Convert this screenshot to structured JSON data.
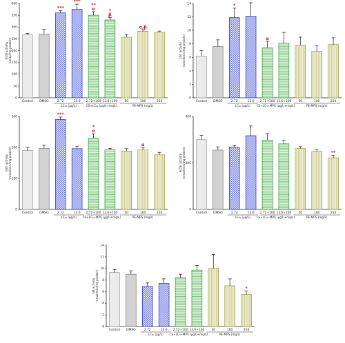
{
  "chart_data": [
    {
      "id": "p1",
      "type": "bar",
      "ylabel": "SOD activity\n(units/mg protein)",
      "ylim": [
        0,
        400
      ],
      "yticks": [
        "0",
        "50",
        "100",
        "150",
        "200",
        "250",
        "300",
        "350",
        "400"
      ],
      "categories": [
        "Control",
        "DMSO",
        "2.72",
        "13.6",
        "2.72+100",
        "13.6+100",
        "50",
        "100",
        "250"
      ],
      "values": [
        268,
        270,
        360,
        375,
        350,
        330,
        257,
        282,
        278
      ],
      "errors": [
        5,
        20,
        10,
        22,
        15,
        10,
        12,
        6,
        5
      ],
      "annotations": [
        "",
        "",
        "***",
        "***",
        "**\nα",
        "*\nβ",
        "",
        "α,β",
        ""
      ],
      "groups": [
        {
          "label": "LC₅₀ (µg/L)",
          "span": [
            2,
            3
          ]
        },
        {
          "label": "CS+LC₅₀ (µg/L+mg/L)",
          "span": [
            4,
            5
          ]
        },
        {
          "label": "PE-MPS (mg/L)",
          "span": [
            6,
            8
          ]
        }
      ]
    },
    {
      "id": "p2",
      "type": "bar",
      "ylabel": "CAT activity\n(umol/min/mg protein)",
      "ylim": [
        0,
        14
      ],
      "yticks": [
        "0",
        "2",
        "4",
        "6",
        "8",
        "10",
        "12",
        "14"
      ],
      "categories": [
        "Control",
        "DMSO",
        "2.72",
        "13.6",
        "2.72+100",
        "13.6+100",
        "50",
        "100",
        "250"
      ],
      "values": [
        6.2,
        7.6,
        11.9,
        12.1,
        7.4,
        8.1,
        7.8,
        6.9,
        7.9
      ],
      "errors": [
        0.8,
        1.0,
        1.4,
        2.0,
        1.0,
        1.6,
        1.2,
        0.8,
        1.0
      ],
      "annotations": [
        "",
        "",
        "*",
        "*",
        "α",
        "",
        "",
        "",
        ""
      ],
      "groups": [
        {
          "label": "LC₅₀ (µg/L)",
          "span": [
            2,
            3
          ]
        },
        {
          "label": "CS+LC₅₀-MPS (µg/L+mg/L)",
          "span": [
            4,
            5
          ]
        },
        {
          "label": "PE-MPS (mg/L)",
          "span": [
            6,
            8
          ]
        }
      ]
    },
    {
      "id": "p3",
      "type": "bar",
      "ylabel": "GST activity\n(nmol/min/mg protein)",
      "ylim": [
        0,
        300
      ],
      "yticks": [
        "0",
        "100",
        "200",
        "300"
      ],
      "categories": [
        "Control",
        "DMSO",
        "2.72",
        "13.6",
        "2.72+100",
        "13.6+100",
        "50",
        "100",
        "250"
      ],
      "values": [
        190,
        197,
        290,
        196,
        230,
        192,
        188,
        192,
        176
      ],
      "errors": [
        10,
        10,
        8,
        8,
        14,
        5,
        8,
        8,
        8
      ],
      "annotations": [
        "",
        "",
        "***",
        "",
        "*\nα",
        "",
        "",
        "α",
        ""
      ],
      "groups": [
        {
          "label": "LC₅₀ (µg/L)",
          "span": [
            2,
            3
          ]
        },
        {
          "label": "CS+LC₅₀-MPS (µg/L+mg/L)",
          "span": [
            4,
            5
          ]
        },
        {
          "label": "PE-MPS (mg/L)",
          "span": [
            6,
            8
          ]
        }
      ]
    },
    {
      "id": "p4",
      "type": "bar",
      "ylabel": "AChE activity\n(nmol/min/mg protein)",
      "ylim": [
        0,
        400
      ],
      "yticks": [
        "0",
        "200",
        "400"
      ],
      "categories": [
        "Control",
        "DMSO",
        "2.72",
        "13.6",
        "2.72+100",
        "13.6+100",
        "50",
        "100",
        "250"
      ],
      "values": [
        300,
        255,
        267,
        317,
        298,
        282,
        262,
        250,
        222
      ],
      "errors": [
        18,
        14,
        8,
        42,
        28,
        16,
        8,
        6,
        10
      ],
      "annotations": [
        "",
        "",
        "",
        "",
        "",
        "",
        "",
        "",
        "**"
      ],
      "groups": [
        {
          "label": "LC₅₀ (µg/L)",
          "span": [
            2,
            3
          ]
        },
        {
          "label": "CS+LC₅₀-MPS (µg/L+mg/L)",
          "span": [
            4,
            5
          ]
        },
        {
          "label": "PE-MPS (mg/L)",
          "span": [
            6,
            8
          ]
        }
      ]
    },
    {
      "id": "p5",
      "type": "bar",
      "ylabel": "GR activity\n(nmol/min/mg protein)",
      "ylim": [
        0,
        14
      ],
      "yticks": [
        "0",
        "2",
        "4",
        "6",
        "8",
        "10",
        "12",
        "14"
      ],
      "categories": [
        "Control",
        "DMSO",
        "2.72",
        "13.6",
        "2.72+100",
        "13.6+100",
        "50",
        "100",
        "250"
      ],
      "values": [
        9.3,
        9.0,
        6.9,
        7.4,
        8.4,
        9.7,
        10.0,
        7.0,
        5.5
      ],
      "errors": [
        0.5,
        0.6,
        0.6,
        0.8,
        0.6,
        0.8,
        2.4,
        1.2,
        0.6
      ],
      "annotations": [
        "",
        "",
        "",
        "",
        "",
        "",
        "",
        "",
        "*"
      ],
      "groups": [
        {
          "label": "LC₅₀ (µg/L)",
          "span": [
            2,
            3
          ]
        },
        {
          "label": "CS+LC₅₀-MPS (µg/L+mg/L)",
          "span": [
            4,
            5
          ]
        },
        {
          "label": "PE-MPS (mg/L)",
          "span": [
            6,
            8
          ]
        }
      ]
    }
  ],
  "colors": {
    "control": "#f1f1f1",
    "control_line": "#9a9a9a",
    "dmso": "#d6d6d6",
    "dmso_line": "#7a7a7a",
    "lc50": "#1c2bc9",
    "lc50_fill": "#e6e8fb",
    "cs": "#1e9a1e",
    "cs_fill": "#e3f3e3",
    "pe": "#9a9a38",
    "pe_fill": "#f0f0d6",
    "sig": "#d01414"
  }
}
